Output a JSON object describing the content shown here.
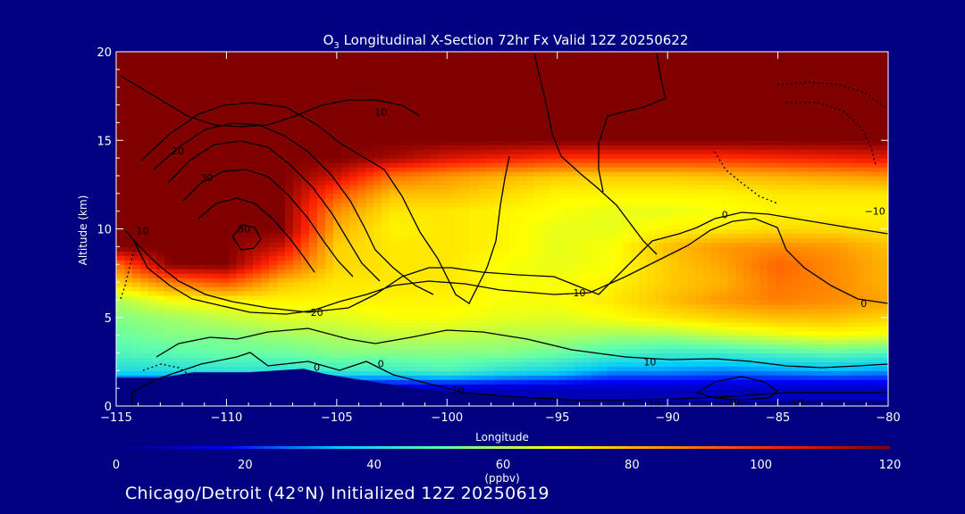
{
  "chart_data": {
    "type": "heatmap",
    "title": {
      "species_base": "O",
      "species_sub": "3",
      "rest": " Longitudinal X-Section 72hr  Fx Valid 12Z 20250622"
    },
    "xlabel": "Longitude",
    "ylabel": "Altitude (km)",
    "xlim": [
      -115,
      -80
    ],
    "ylim": [
      0,
      20
    ],
    "xticks": [
      -115,
      -110,
      -105,
      -100,
      -95,
      -90,
      -85,
      -80
    ],
    "xtick_labels": [
      "−115",
      "−110",
      "−105",
      "−100",
      "−95",
      "−90",
      "−85",
      "−80"
    ],
    "yticks": [
      0,
      5,
      10,
      15,
      20
    ],
    "colorbar": {
      "label": "(ppbv)",
      "ticks": [
        0,
        20,
        40,
        60,
        80,
        100,
        120
      ],
      "range": [
        0,
        120
      ]
    },
    "colors": {
      "background": "#000080",
      "colormap": [
        "#000080",
        "#0000ff",
        "#00c8ff",
        "#64ffaa",
        "#ffff00",
        "#ff8c00",
        "#ff2000",
        "#800000"
      ]
    },
    "field_lon": [
      -115,
      -112.5,
      -110,
      -107.5,
      -105,
      -102.5,
      -100,
      -97.5,
      -95,
      -92.5,
      -90,
      -87.5,
      -85,
      -82.5,
      -80
    ],
    "field_alt": [
      0,
      1,
      2,
      3,
      4,
      5,
      6,
      7,
      8,
      9,
      10,
      11,
      12,
      13,
      14,
      15,
      20
    ],
    "field_ppbv": [
      [
        8,
        8,
        8,
        8,
        8,
        8,
        8,
        8,
        8,
        8,
        8,
        8,
        8,
        8,
        8
      ],
      [
        8,
        8,
        8,
        8,
        8,
        8,
        8,
        8,
        8,
        8,
        8,
        8,
        8,
        8,
        8
      ],
      [
        40,
        40,
        42,
        42,
        45,
        45,
        48,
        42,
        38,
        30,
        30,
        28,
        30,
        32,
        30
      ],
      [
        48,
        50,
        52,
        52,
        55,
        55,
        55,
        55,
        52,
        48,
        45,
        45,
        48,
        50,
        48
      ],
      [
        52,
        55,
        55,
        58,
        60,
        62,
        62,
        60,
        60,
        58,
        58,
        62,
        65,
        68,
        66
      ],
      [
        55,
        58,
        62,
        65,
        65,
        68,
        68,
        66,
        65,
        68,
        72,
        75,
        78,
        78,
        75
      ],
      [
        60,
        68,
        70,
        70,
        70,
        70,
        70,
        68,
        68,
        72,
        78,
        84,
        88,
        86,
        82
      ],
      [
        75,
        88,
        95,
        78,
        72,
        72,
        72,
        68,
        68,
        70,
        76,
        80,
        90,
        86,
        80
      ],
      [
        90,
        120,
        120,
        95,
        75,
        72,
        72,
        68,
        66,
        68,
        76,
        82,
        92,
        86,
        80
      ],
      [
        120,
        120,
        120,
        110,
        75,
        72,
        72,
        70,
        66,
        68,
        78,
        84,
        86,
        84,
        78
      ],
      [
        120,
        120,
        120,
        120,
        80,
        70,
        72,
        70,
        66,
        66,
        70,
        72,
        74,
        74,
        72
      ],
      [
        120,
        120,
        120,
        120,
        85,
        72,
        72,
        70,
        68,
        66,
        66,
        68,
        70,
        70,
        70
      ],
      [
        120,
        120,
        120,
        120,
        95,
        78,
        78,
        74,
        70,
        70,
        70,
        70,
        72,
        72,
        72
      ],
      [
        120,
        120,
        120,
        120,
        110,
        90,
        84,
        80,
        76,
        76,
        76,
        78,
        80,
        82,
        84
      ],
      [
        120,
        120,
        120,
        120,
        120,
        115,
        108,
        104,
        100,
        100,
        100,
        100,
        102,
        104,
        106
      ],
      [
        120,
        120,
        120,
        120,
        120,
        120,
        120,
        120,
        120,
        120,
        120,
        120,
        120,
        120,
        120
      ],
      [
        120,
        120,
        120,
        120,
        120,
        120,
        120,
        120,
        120,
        120,
        120,
        120,
        120,
        120,
        120
      ]
    ],
    "terrain_km": [
      {
        "lon": -115,
        "alt": 1.6
      },
      {
        "lon": -113,
        "alt": 1.6
      },
      {
        "lon": -111.5,
        "alt": 1.9
      },
      {
        "lon": -109,
        "alt": 1.9
      },
      {
        "lon": -106.5,
        "alt": 2.1
      },
      {
        "lon": -105.5,
        "alt": 1.8
      },
      {
        "lon": -103.5,
        "alt": 1.4
      },
      {
        "lon": -101.5,
        "alt": 1.0
      },
      {
        "lon": -99,
        "alt": 0.7
      },
      {
        "lon": -96,
        "alt": 0.5
      },
      {
        "lon": -93,
        "alt": 0.35
      },
      {
        "lon": -90,
        "alt": 0.3
      },
      {
        "lon": -86,
        "alt": 0.25
      },
      {
        "lon": -82.5,
        "alt": 0.35
      },
      {
        "lon": -80,
        "alt": 0.3
      }
    ],
    "contour_labels": [
      {
        "text": "10",
        "lon": -113.8,
        "alt": 9.9
      },
      {
        "text": "20",
        "lon": -112.2,
        "alt": 14.4
      },
      {
        "text": "30",
        "lon": -110.9,
        "alt": 12.9
      },
      {
        "text": "50",
        "lon": -109.2,
        "alt": 10.0
      },
      {
        "text": "10",
        "lon": -103.0,
        "alt": 16.6
      },
      {
        "text": "20",
        "lon": -105.9,
        "alt": 5.3
      },
      {
        "text": "0",
        "lon": -105.9,
        "alt": 2.2
      },
      {
        "text": "0",
        "lon": -103.0,
        "alt": 2.4
      },
      {
        "text": "10",
        "lon": -99.5,
        "alt": 0.9
      },
      {
        "text": "10",
        "lon": -94.0,
        "alt": 6.4
      },
      {
        "text": "10",
        "lon": -90.8,
        "alt": 2.5
      },
      {
        "text": "10",
        "lon": -90.6,
        "alt": 0.1
      },
      {
        "text": "10",
        "lon": -87.0,
        "alt": 0.2
      },
      {
        "text": "10",
        "lon": -84.1,
        "alt": 0.2
      },
      {
        "text": "0",
        "lon": -87.4,
        "alt": 10.8
      },
      {
        "text": "−10",
        "lon": -80.6,
        "alt": 11.0
      },
      {
        "text": "0",
        "lon": -81.1,
        "alt": 5.8
      }
    ]
  },
  "footer": "Chicago/Detroit (42°N) Initialized 12Z 20250619"
}
